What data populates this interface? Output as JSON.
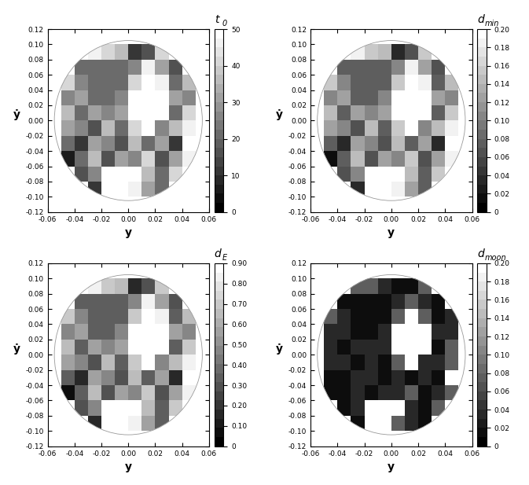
{
  "chart_data": [
    {
      "type": "heatmap",
      "xlabel": "y",
      "ylabel": "ẏ",
      "colorbar_title": {
        "symbol": "t",
        "subscript": "0"
      },
      "xlim": [
        -0.06,
        0.06
      ],
      "ylim": [
        -0.12,
        0.12
      ],
      "xticks": [
        -0.06,
        -0.04,
        -0.02,
        {
          "value": 0,
          "label": "0.00"
        },
        0.02,
        0.04,
        0.06
      ],
      "yticks": [
        -0.12,
        {
          "value": -0.1,
          "label": "-0.10"
        },
        -0.08,
        -0.06,
        -0.04,
        -0.02,
        {
          "value": 0,
          "label": "0.00"
        },
        0.02,
        0.04,
        0.06,
        0.08,
        {
          "value": 0.1,
          "label": "0.10"
        },
        0.12
      ],
      "x_edges": [
        -0.06,
        -0.05,
        -0.04,
        -0.03,
        -0.02,
        -0.01,
        0,
        0.01,
        0.02,
        0.03,
        0.04,
        0.05,
        0.06
      ],
      "y_edges": [
        -0.12,
        -0.1,
        -0.08,
        -0.06,
        -0.04,
        -0.02,
        0,
        0.02,
        0.04,
        0.06,
        0.08,
        0.1,
        0.12
      ],
      "colorbar_range": [
        0,
        50
      ],
      "colorbar_ticks": [
        0,
        10,
        20,
        30,
        40,
        50
      ],
      "grid": false,
      "cells": [
        [
          null,
          null,
          null,
          null,
          null,
          null,
          null,
          null,
          null,
          null,
          null,
          null
        ],
        [
          null,
          null,
          null,
          10,
          50,
          50,
          45,
          30,
          20,
          null,
          null,
          null
        ],
        [
          null,
          null,
          15,
          25,
          50,
          50,
          50,
          35,
          20,
          40,
          null,
          null
        ],
        [
          null,
          5,
          20,
          35,
          15,
          30,
          25,
          40,
          15,
          30,
          45,
          null
        ],
        [
          null,
          20,
          10,
          30,
          25,
          15,
          35,
          20,
          30,
          10,
          50,
          null
        ],
        [
          null,
          30,
          25,
          15,
          35,
          20,
          40,
          50,
          25,
          35,
          45,
          null
        ],
        [
          null,
          35,
          20,
          30,
          25,
          30,
          50,
          50,
          50,
          20,
          40,
          null
        ],
        [
          null,
          25,
          30,
          20,
          20,
          25,
          50,
          50,
          50,
          30,
          25,
          null
        ],
        [
          null,
          40,
          25,
          20,
          20,
          20,
          40,
          50,
          45,
          20,
          35,
          null
        ],
        [
          null,
          null,
          20,
          20,
          20,
          20,
          25,
          45,
          30,
          15,
          null,
          null
        ],
        [
          null,
          null,
          null,
          45,
          40,
          35,
          10,
          15,
          40,
          null,
          null,
          null
        ],
        [
          null,
          null,
          null,
          null,
          null,
          null,
          null,
          null,
          null,
          null,
          null,
          null
        ]
      ]
    },
    {
      "type": "heatmap",
      "xlabel": "y",
      "ylabel": "ẏ",
      "colorbar_title": {
        "symbol": "d",
        "subscript": "min"
      },
      "xlim": [
        -0.06,
        0.06
      ],
      "ylim": [
        -0.12,
        0.12
      ],
      "xticks": [
        -0.06,
        -0.04,
        -0.02,
        {
          "value": 0,
          "label": "0.00"
        },
        0.02,
        0.04,
        0.06
      ],
      "yticks": [
        -0.12,
        {
          "value": -0.1,
          "label": "-0.10"
        },
        -0.08,
        -0.06,
        -0.04,
        -0.02,
        {
          "value": 0,
          "label": "0.00"
        },
        0.02,
        0.04,
        0.06,
        0.08,
        {
          "value": 0.1,
          "label": "0.10"
        },
        0.12
      ],
      "x_edges": [
        -0.06,
        -0.05,
        -0.04,
        -0.03,
        -0.02,
        -0.01,
        0,
        0.01,
        0.02,
        0.03,
        0.04,
        0.05,
        0.06
      ],
      "y_edges": [
        -0.12,
        -0.1,
        -0.08,
        -0.06,
        -0.04,
        -0.02,
        0,
        0.02,
        0.04,
        0.06,
        0.08,
        0.1,
        0.12
      ],
      "colorbar_range": [
        0,
        0.2
      ],
      "colorbar_ticks": [
        0,
        0.02,
        0.04,
        0.06,
        0.08,
        {
          "value": 0.1,
          "label": "0.10"
        },
        0.12,
        0.14,
        0.16,
        0.18,
        {
          "value": 0.2,
          "label": "0.20"
        }
      ],
      "grid": false,
      "cells": [
        [
          null,
          null,
          null,
          null,
          null,
          null,
          null,
          null,
          null,
          null,
          null,
          null
        ],
        [
          null,
          null,
          null,
          0.04,
          0.2,
          0.2,
          0.18,
          0.12,
          0.08,
          null,
          null,
          null
        ],
        [
          null,
          null,
          0.06,
          0.1,
          0.2,
          0.2,
          0.2,
          0.14,
          0.08,
          0.16,
          null,
          null
        ],
        [
          null,
          0.02,
          0.08,
          0.14,
          0.06,
          0.12,
          0.1,
          0.16,
          0.06,
          0.12,
          0.18,
          null
        ],
        [
          null,
          0.08,
          0.04,
          0.12,
          0.1,
          0.06,
          0.14,
          0.08,
          0.12,
          0.04,
          0.2,
          null
        ],
        [
          null,
          0.12,
          0.1,
          0.06,
          0.14,
          0.08,
          0.16,
          0.2,
          0.1,
          0.14,
          0.18,
          null
        ],
        [
          null,
          0.14,
          0.08,
          0.12,
          0.1,
          0.12,
          0.2,
          0.2,
          0.2,
          0.08,
          0.16,
          null
        ],
        [
          null,
          0.1,
          0.12,
          0.08,
          0.08,
          0.1,
          0.2,
          0.2,
          0.2,
          0.12,
          0.1,
          null
        ],
        [
          null,
          0.16,
          0.1,
          0.08,
          0.08,
          0.08,
          0.16,
          0.2,
          0.18,
          0.08,
          0.14,
          null
        ],
        [
          null,
          null,
          0.08,
          0.08,
          0.08,
          0.08,
          0.1,
          0.18,
          0.12,
          0.06,
          null,
          null
        ],
        [
          null,
          null,
          null,
          0.18,
          0.16,
          0.14,
          0.04,
          0.06,
          0.16,
          null,
          null,
          null
        ],
        [
          null,
          null,
          null,
          null,
          null,
          null,
          null,
          null,
          null,
          null,
          null,
          null
        ]
      ]
    },
    {
      "type": "heatmap",
      "xlabel": "y",
      "ylabel": "ẏ",
      "colorbar_title": {
        "symbol": "d",
        "subscript": "E"
      },
      "xlim": [
        -0.06,
        0.06
      ],
      "ylim": [
        -0.12,
        0.12
      ],
      "xticks": [
        -0.06,
        -0.04,
        -0.02,
        {
          "value": 0,
          "label": "0.00"
        },
        0.02,
        0.04,
        0.06
      ],
      "yticks": [
        -0.12,
        {
          "value": -0.1,
          "label": "-0.10"
        },
        -0.08,
        -0.06,
        -0.04,
        -0.02,
        {
          "value": 0,
          "label": "0.00"
        },
        0.02,
        0.04,
        0.06,
        0.08,
        {
          "value": 0.1,
          "label": "0.10"
        },
        0.12
      ],
      "x_edges": [
        -0.06,
        -0.05,
        -0.04,
        -0.03,
        -0.02,
        -0.01,
        0,
        0.01,
        0.02,
        0.03,
        0.04,
        0.05,
        0.06
      ],
      "y_edges": [
        -0.12,
        -0.1,
        -0.08,
        -0.06,
        -0.04,
        -0.02,
        0,
        0.02,
        0.04,
        0.06,
        0.08,
        0.1,
        0.12
      ],
      "colorbar_range": [
        0,
        0.9
      ],
      "colorbar_ticks": [
        0,
        {
          "value": 0.1,
          "label": "0.10"
        },
        {
          "value": 0.2,
          "label": "0.20"
        },
        {
          "value": 0.3,
          "label": "0.30"
        },
        {
          "value": 0.4,
          "label": "0.40"
        },
        {
          "value": 0.5,
          "label": "0.50"
        },
        {
          "value": 0.6,
          "label": "0.60"
        },
        {
          "value": 0.7,
          "label": "0.70"
        },
        {
          "value": 0.8,
          "label": "0.80"
        },
        {
          "value": 0.9,
          "label": "0.90"
        }
      ],
      "grid": false,
      "cells": [
        [
          null,
          null,
          null,
          null,
          null,
          null,
          null,
          null,
          null,
          null,
          null,
          null
        ],
        [
          null,
          null,
          null,
          0.18,
          0.9,
          0.9,
          0.81,
          0.54,
          0.36,
          null,
          null,
          null
        ],
        [
          null,
          null,
          0.27,
          0.45,
          0.9,
          0.9,
          0.9,
          0.63,
          0.36,
          0.72,
          null,
          null
        ],
        [
          null,
          0.09,
          0.36,
          0.63,
          0.27,
          0.54,
          0.45,
          0.72,
          0.27,
          0.54,
          0.81,
          null
        ],
        [
          null,
          0.36,
          0.18,
          0.54,
          0.45,
          0.27,
          0.63,
          0.36,
          0.54,
          0.18,
          0.9,
          null
        ],
        [
          null,
          0.54,
          0.45,
          0.27,
          0.63,
          0.36,
          0.72,
          0.9,
          0.45,
          0.63,
          0.81,
          null
        ],
        [
          null,
          0.63,
          0.36,
          0.54,
          0.45,
          0.54,
          0.9,
          0.9,
          0.9,
          0.36,
          0.72,
          null
        ],
        [
          null,
          0.45,
          0.54,
          0.36,
          0.36,
          0.45,
          0.9,
          0.9,
          0.9,
          0.54,
          0.45,
          null
        ],
        [
          null,
          0.72,
          0.45,
          0.36,
          0.36,
          0.36,
          0.72,
          0.9,
          0.81,
          0.36,
          0.63,
          null
        ],
        [
          null,
          null,
          0.36,
          0.36,
          0.36,
          0.36,
          0.45,
          0.81,
          0.54,
          0.27,
          null,
          null
        ],
        [
          null,
          null,
          null,
          0.81,
          0.72,
          0.63,
          0.18,
          0.27,
          0.72,
          null,
          null,
          null
        ],
        [
          null,
          null,
          null,
          null,
          null,
          null,
          null,
          null,
          null,
          null,
          null,
          null
        ]
      ]
    },
    {
      "type": "heatmap",
      "xlabel": "y",
      "ylabel": "ẏ",
      "colorbar_title": {
        "symbol": "d",
        "subscript": "moon"
      },
      "xlim": [
        -0.06,
        0.06
      ],
      "ylim": [
        -0.12,
        0.12
      ],
      "xticks": [
        -0.06,
        -0.04,
        -0.02,
        {
          "value": 0,
          "label": "0.00"
        },
        0.02,
        0.04,
        0.06
      ],
      "yticks": [
        -0.12,
        {
          "value": -0.1,
          "label": "-0.10"
        },
        -0.08,
        -0.06,
        -0.04,
        -0.02,
        {
          "value": 0,
          "label": "0.00"
        },
        0.02,
        0.04,
        0.06,
        0.08,
        {
          "value": 0.1,
          "label": "0.10"
        },
        0.12
      ],
      "x_edges": [
        -0.06,
        -0.05,
        -0.04,
        -0.03,
        -0.02,
        -0.01,
        0,
        0.01,
        0.02,
        0.03,
        0.04,
        0.05,
        0.06
      ],
      "y_edges": [
        -0.12,
        -0.1,
        -0.08,
        -0.06,
        -0.04,
        -0.02,
        0,
        0.02,
        0.04,
        0.06,
        0.08,
        0.1,
        0.12
      ],
      "colorbar_range": [
        0,
        0.2
      ],
      "colorbar_ticks": [
        0,
        0.02,
        0.04,
        0.06,
        0.08,
        {
          "value": 0.1,
          "label": "0.10"
        },
        0.12,
        0.14,
        0.16,
        0.18,
        {
          "value": 0.2,
          "label": "0.20"
        }
      ],
      "grid": false,
      "cells": [
        [
          null,
          null,
          null,
          null,
          null,
          null,
          null,
          null,
          null,
          null,
          null,
          null
        ],
        [
          null,
          null,
          null,
          0.02,
          0.2,
          0.2,
          0.08,
          0.04,
          0.02,
          null,
          null,
          null
        ],
        [
          null,
          null,
          0.02,
          0.04,
          0.2,
          0.2,
          0.2,
          0.04,
          0.02,
          0.08,
          null,
          null
        ],
        [
          null,
          0.02,
          0.02,
          0.04,
          0.02,
          0.04,
          0.04,
          0.08,
          0.02,
          0.04,
          0.08,
          null
        ],
        [
          null,
          0.02,
          0.02,
          0.04,
          0.04,
          0.02,
          0.04,
          0.02,
          0.04,
          0.02,
          0.2,
          null
        ],
        [
          null,
          0.04,
          0.04,
          0.02,
          0.04,
          0.02,
          0.08,
          0.2,
          0.04,
          0.04,
          0.08,
          null
        ],
        [
          null,
          0.04,
          0.02,
          0.04,
          0.04,
          0.04,
          0.2,
          0.2,
          0.2,
          0.02,
          0.08,
          null
        ],
        [
          null,
          0.04,
          0.04,
          0.02,
          0.02,
          0.04,
          0.2,
          0.2,
          0.2,
          0.04,
          0.04,
          null
        ],
        [
          null,
          0.08,
          0.04,
          0.02,
          0.02,
          0.02,
          0.08,
          0.2,
          0.08,
          0.02,
          0.04,
          null
        ],
        [
          null,
          null,
          0.02,
          0.02,
          0.02,
          0.02,
          0.04,
          0.08,
          0.04,
          0.02,
          null,
          null
        ],
        [
          null,
          null,
          null,
          0.08,
          0.08,
          0.04,
          0.02,
          0.02,
          0.08,
          null,
          null,
          null
        ],
        [
          null,
          null,
          null,
          null,
          null,
          null,
          null,
          null,
          null,
          null,
          null,
          null
        ]
      ]
    }
  ]
}
